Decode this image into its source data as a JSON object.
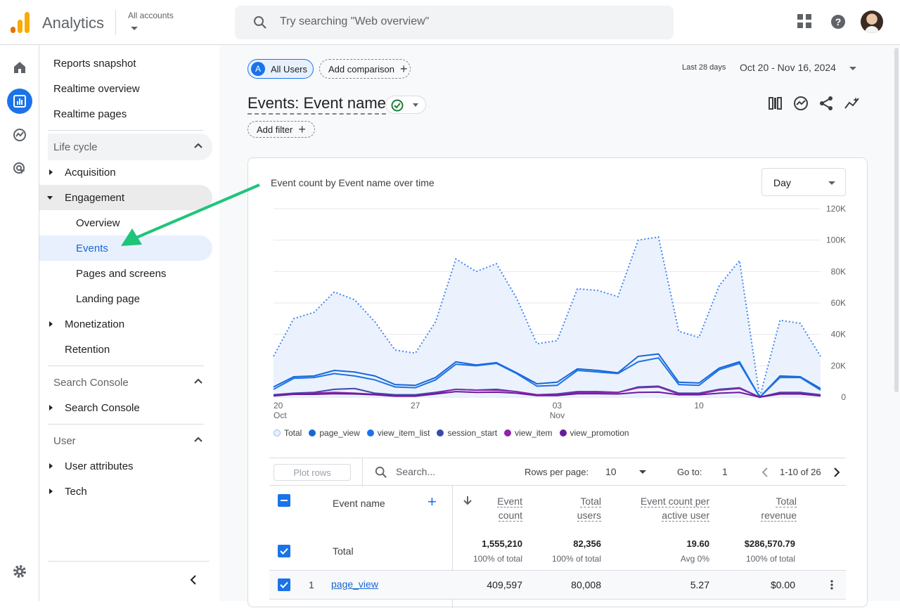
{
  "header": {
    "app_title": "Analytics",
    "accounts_label": "All accounts",
    "search_placeholder": "Try searching \"Web overview\"",
    "icons": [
      "apps-grid-icon",
      "help-icon",
      "avatar"
    ]
  },
  "nav": {
    "top_items": [
      "Reports snapshot",
      "Realtime overview",
      "Realtime pages"
    ],
    "lifecycle": {
      "label": "Life cycle",
      "items": {
        "acquisition": "Acquisition",
        "engagement": "Engagement",
        "engagement_children": [
          "Overview",
          "Events",
          "Pages and screens",
          "Landing page"
        ],
        "monetization": "Monetization",
        "retention": "Retention"
      }
    },
    "search_console": {
      "label": "Search Console",
      "item": "Search Console"
    },
    "user": {
      "label": "User",
      "items": [
        "User attributes",
        "Tech"
      ]
    }
  },
  "toolbar": {
    "segment_badge": "A",
    "segment_label": "All Users",
    "add_comparison": "Add comparison",
    "date_prefix": "Last 28 days",
    "date_range": "Oct 20 - Nov 16, 2024",
    "title": "Events: Event name",
    "add_filter": "Add filter"
  },
  "chart": {
    "title": "Event count by Event name over time",
    "granularity": "Day"
  },
  "chart_data": {
    "type": "line",
    "title": "Event count by Event name over time",
    "x": [
      "Oct 20",
      "Oct 21",
      "Oct 22",
      "Oct 23",
      "Oct 24",
      "Oct 25",
      "Oct 26",
      "Oct 27",
      "Oct 28",
      "Oct 29",
      "Oct 30",
      "Oct 31",
      "Nov 01",
      "Nov 02",
      "Nov 03",
      "Nov 04",
      "Nov 05",
      "Nov 06",
      "Nov 07",
      "Nov 08",
      "Nov 09",
      "Nov 10",
      "Nov 11",
      "Nov 12",
      "Nov 13",
      "Nov 14",
      "Nov 15",
      "Nov 16"
    ],
    "x_ticks": [
      {
        "label": "20",
        "sub": "Oct",
        "index": 0
      },
      {
        "label": "27",
        "sub": "",
        "index": 7
      },
      {
        "label": "03",
        "sub": "Nov",
        "index": 14
      },
      {
        "label": "10",
        "sub": "",
        "index": 21
      }
    ],
    "y_ticks": [
      "120K",
      "100K",
      "80K",
      "60K",
      "40K",
      "20K",
      "0"
    ],
    "ylim": [
      0,
      120000
    ],
    "series": [
      {
        "name": "Total",
        "color": "#4285f4",
        "style": "dotted-area",
        "values": [
          26000,
          50000,
          54000,
          67000,
          62000,
          48000,
          30000,
          28000,
          48000,
          88000,
          80000,
          85000,
          63000,
          34000,
          36000,
          69000,
          68000,
          64000,
          100000,
          102000,
          42000,
          38000,
          71000,
          87000,
          0,
          49000,
          47000,
          26000
        ]
      },
      {
        "name": "page_view",
        "color": "#1967d2",
        "values": [
          6500,
          13000,
          13500,
          17000,
          16000,
          13500,
          8000,
          7500,
          12500,
          22500,
          20500,
          22000,
          15500,
          8500,
          9500,
          18000,
          17000,
          15500,
          26000,
          27500,
          9500,
          9000,
          18500,
          22500,
          0,
          13500,
          13000,
          5500
        ]
      },
      {
        "name": "view_item_list",
        "color": "#1a73e8",
        "values": [
          5000,
          12000,
          12500,
          15000,
          13500,
          11000,
          6500,
          6000,
          11000,
          21000,
          20000,
          21500,
          15000,
          7000,
          7500,
          17000,
          16000,
          15000,
          22500,
          25000,
          8000,
          7500,
          17500,
          21500,
          0,
          12500,
          12500,
          4500
        ]
      },
      {
        "name": "session_start",
        "color": "#3949ab",
        "values": [
          1500,
          2500,
          3000,
          5000,
          5500,
          2500,
          1500,
          1500,
          3000,
          5000,
          4500,
          5000,
          3500,
          1500,
          2000,
          3500,
          3500,
          3000,
          6500,
          7000,
          2500,
          2500,
          5000,
          6000,
          0,
          3000,
          3000,
          1500
        ]
      },
      {
        "name": "view_item",
        "color": "#8e24aa",
        "values": [
          1000,
          2000,
          2500,
          3000,
          2500,
          1800,
          800,
          800,
          2500,
          5000,
          4500,
          4500,
          3500,
          1500,
          1500,
          3000,
          3000,
          3000,
          6000,
          6500,
          2000,
          2000,
          4500,
          5500,
          0,
          2500,
          2500,
          1000
        ]
      },
      {
        "name": "view_promotion",
        "color": "#6a1b9a",
        "values": [
          800,
          1800,
          1800,
          2200,
          2000,
          1500,
          600,
          600,
          2000,
          3500,
          3000,
          3200,
          2500,
          1000,
          1000,
          2200,
          2200,
          2000,
          3000,
          3200,
          1500,
          1500,
          2500,
          3000,
          0,
          2000,
          2000,
          800
        ]
      }
    ]
  },
  "table": {
    "plot_rows": "Plot rows",
    "search_placeholder": "Search...",
    "rows_per_page_label": "Rows per page:",
    "rows_per_page": "10",
    "goto_label": "Go to:",
    "goto_value": "1",
    "pagination": "1-10 of 26",
    "columns": {
      "event_name": "Event name",
      "event_count": [
        "Event",
        "count"
      ],
      "total_users": [
        "Total",
        "users"
      ],
      "event_per_user": [
        "Event count per",
        "active user"
      ],
      "total_revenue": [
        "Total",
        "revenue"
      ]
    },
    "total_row": {
      "label": "Total",
      "event_count": "1,555,210",
      "event_count_sub": "100% of total",
      "total_users": "82,356",
      "total_users_sub": "100% of total",
      "per_user": "19.60",
      "per_user_sub": "Avg 0%",
      "revenue": "$286,570.79",
      "revenue_sub": "100% of total"
    },
    "rows": [
      {
        "index": "1",
        "name": "page_view",
        "event_count": "409,597",
        "total_users": "80,008",
        "per_user": "5.27",
        "revenue": "$0.00"
      }
    ]
  }
}
